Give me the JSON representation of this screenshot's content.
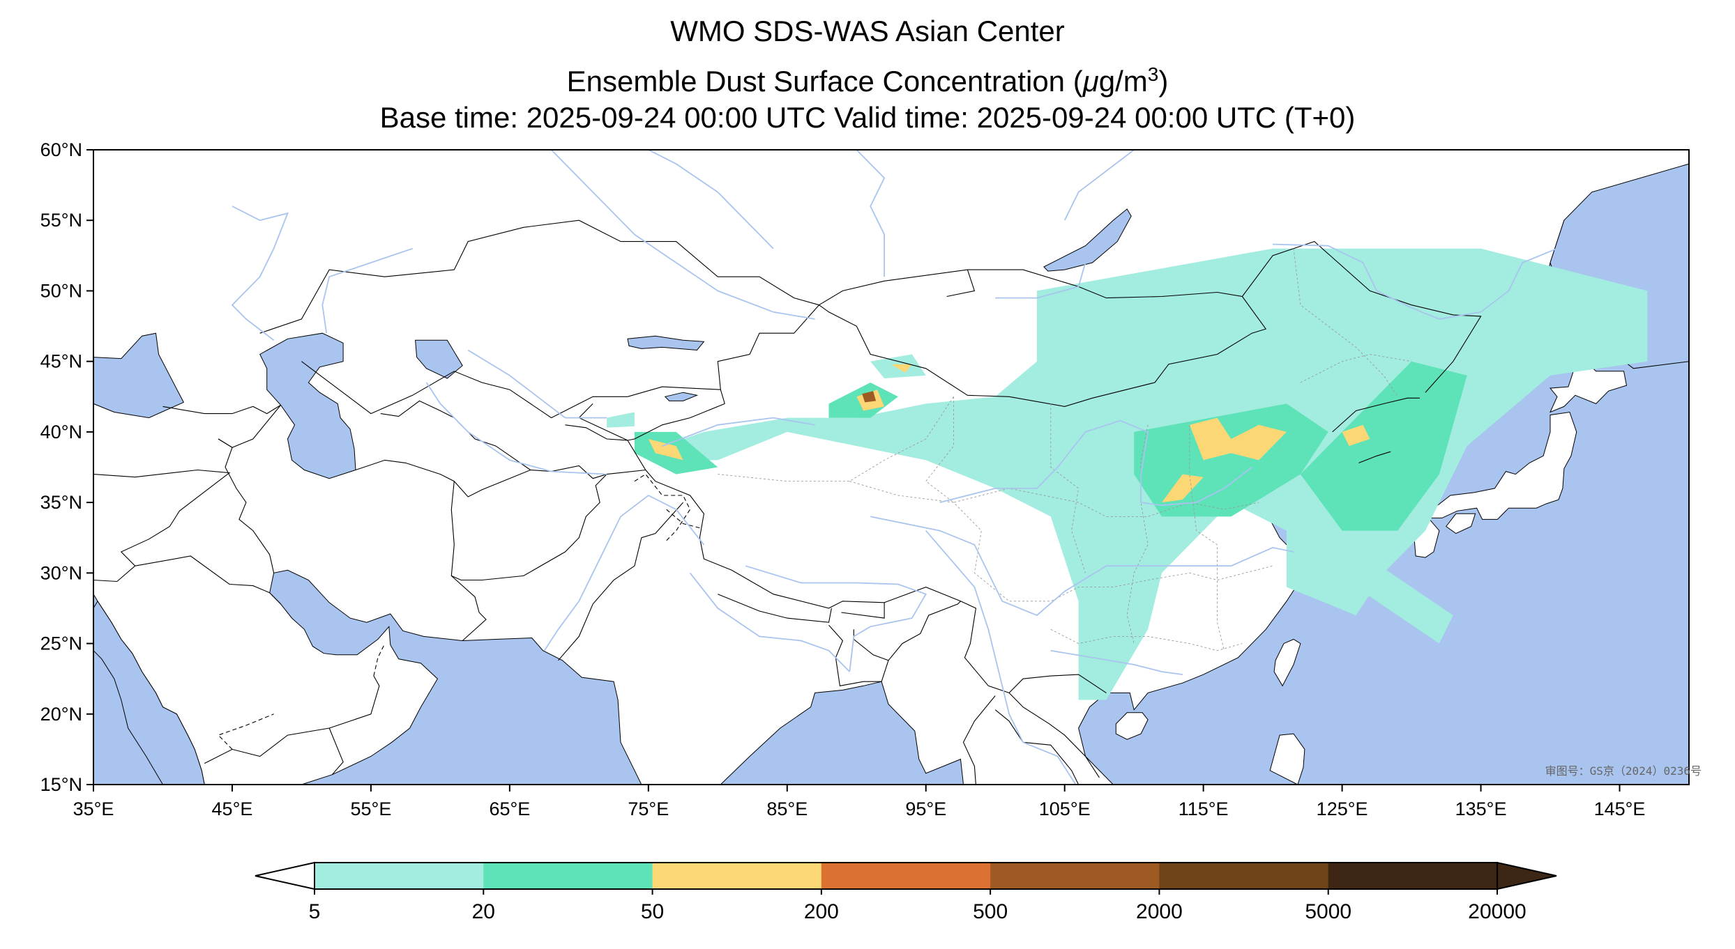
{
  "title": {
    "line1": "WMO SDS-WAS Asian Center",
    "line2_prefix": "Ensemble Dust Surface Concentration (",
    "line2_mu": "μ",
    "line2_unit": "g/m",
    "line2_sup": "3",
    "line2_suffix": ")",
    "line3": "Base time: 2025-09-24 00:00 UTC Valid time: 2025-09-24 00:00 UTC (T+0)"
  },
  "map": {
    "lon_range": [
      35,
      150
    ],
    "lat_range": [
      15,
      60
    ],
    "lat_ticks": [
      "60°N",
      "55°N",
      "50°N",
      "45°N",
      "40°N",
      "35°N",
      "30°N",
      "25°N",
      "20°N",
      "15°N"
    ],
    "lon_ticks": [
      "35°E",
      "45°E",
      "55°E",
      "65°E",
      "75°E",
      "85°E",
      "95°E",
      "105°E",
      "115°E",
      "125°E",
      "135°E",
      "145°E"
    ],
    "approval_text": "审图号：GS京（2024）0236号",
    "colors": {
      "ocean": "#a9c4ee",
      "land": "#ffffff",
      "border": "#000000",
      "river": "#a9c4ee"
    }
  },
  "colorbar": {
    "labels": [
      "5",
      "20",
      "50",
      "200",
      "500",
      "2000",
      "5000",
      "20000"
    ],
    "colors": [
      "#a2ece0",
      "#5ee2b8",
      "#fbd775",
      "#dc7232",
      "#9e5a23",
      "#6e4318",
      "#3d2613"
    ]
  },
  "dust_areas": [
    {
      "level": 1,
      "pts": [
        [
          103,
          50
        ],
        [
          120,
          53
        ],
        [
          135,
          53
        ],
        [
          147,
          50
        ],
        [
          147,
          45
        ],
        [
          140,
          44
        ],
        [
          134,
          39
        ],
        [
          131,
          33
        ],
        [
          128,
          30
        ],
        [
          126,
          27
        ],
        [
          121,
          29
        ],
        [
          121,
          33
        ],
        [
          117,
          35
        ],
        [
          112,
          30
        ],
        [
          111,
          26
        ],
        [
          108,
          21
        ],
        [
          106,
          21
        ],
        [
          106,
          28
        ],
        [
          104,
          34
        ],
        [
          100,
          36
        ],
        [
          95,
          38
        ],
        [
          90,
          39
        ],
        [
          85,
          40
        ],
        [
          80,
          38
        ],
        [
          77,
          38
        ],
        [
          76,
          39
        ],
        [
          79,
          40
        ],
        [
          85,
          41
        ],
        [
          90,
          41
        ],
        [
          95,
          42
        ],
        [
          100,
          42.5
        ],
        [
          103,
          45
        ]
      ]
    },
    {
      "level": 1,
      "pts": [
        [
          91,
          45
        ],
        [
          94,
          45.5
        ],
        [
          95,
          44
        ],
        [
          92,
          43.8
        ]
      ]
    },
    {
      "level": 1,
      "pts": [
        [
          72,
          41
        ],
        [
          74,
          41.4
        ],
        [
          74,
          40.4
        ],
        [
          72,
          40.3
        ]
      ]
    },
    {
      "level": 1,
      "pts": [
        [
          127,
          31
        ],
        [
          133,
          27
        ],
        [
          132,
          25
        ],
        [
          126,
          29
        ]
      ]
    },
    {
      "level": 2,
      "pts": [
        [
          122,
          37
        ],
        [
          130,
          45
        ],
        [
          134,
          44
        ],
        [
          132,
          37
        ],
        [
          129,
          33
        ],
        [
          125,
          33
        ]
      ]
    },
    {
      "level": 2,
      "pts": [
        [
          110,
          40
        ],
        [
          121,
          42
        ],
        [
          124,
          40
        ],
        [
          122,
          37
        ],
        [
          117,
          34
        ],
        [
          112,
          34
        ],
        [
          110,
          37
        ]
      ]
    },
    {
      "level": 2,
      "pts": [
        [
          74,
          40
        ],
        [
          77,
          40
        ],
        [
          80,
          37.5
        ],
        [
          77,
          37
        ],
        [
          74,
          38.5
        ]
      ]
    },
    {
      "level": 2,
      "pts": [
        [
          88,
          42
        ],
        [
          91,
          43.5
        ],
        [
          93,
          42.5
        ],
        [
          91,
          41
        ],
        [
          88,
          41
        ]
      ]
    },
    {
      "level": 3,
      "pts": [
        [
          114,
          40.5
        ],
        [
          116,
          41
        ],
        [
          117,
          39.5
        ],
        [
          119,
          40.5
        ],
        [
          121,
          40
        ],
        [
          119,
          38
        ],
        [
          117,
          38.5
        ],
        [
          115,
          38
        ]
      ]
    },
    {
      "level": 3,
      "pts": [
        [
          112,
          35
        ],
        [
          113.5,
          37
        ],
        [
          115,
          36.8
        ],
        [
          113.5,
          35.2
        ]
      ]
    },
    {
      "level": 3,
      "pts": [
        [
          125,
          40
        ],
        [
          126.5,
          40.5
        ],
        [
          127,
          39.5
        ],
        [
          125.5,
          39
        ]
      ]
    },
    {
      "level": 3,
      "pts": [
        [
          75,
          39.5
        ],
        [
          77,
          39
        ],
        [
          77.5,
          38
        ],
        [
          75.5,
          38.5
        ]
      ]
    },
    {
      "level": 3,
      "pts": [
        [
          90,
          42.5
        ],
        [
          91.5,
          43
        ],
        [
          92,
          41.8
        ],
        [
          90.5,
          41.5
        ]
      ]
    },
    {
      "level": 3,
      "pts": [
        [
          92.5,
          44.8
        ],
        [
          94,
          44.8
        ],
        [
          93.5,
          44.2
        ]
      ]
    },
    {
      "level": 5,
      "pts": [
        [
          90.4,
          42.7
        ],
        [
          91.2,
          42.9
        ],
        [
          91.4,
          42.2
        ],
        [
          90.6,
          42.1
        ]
      ]
    }
  ]
}
